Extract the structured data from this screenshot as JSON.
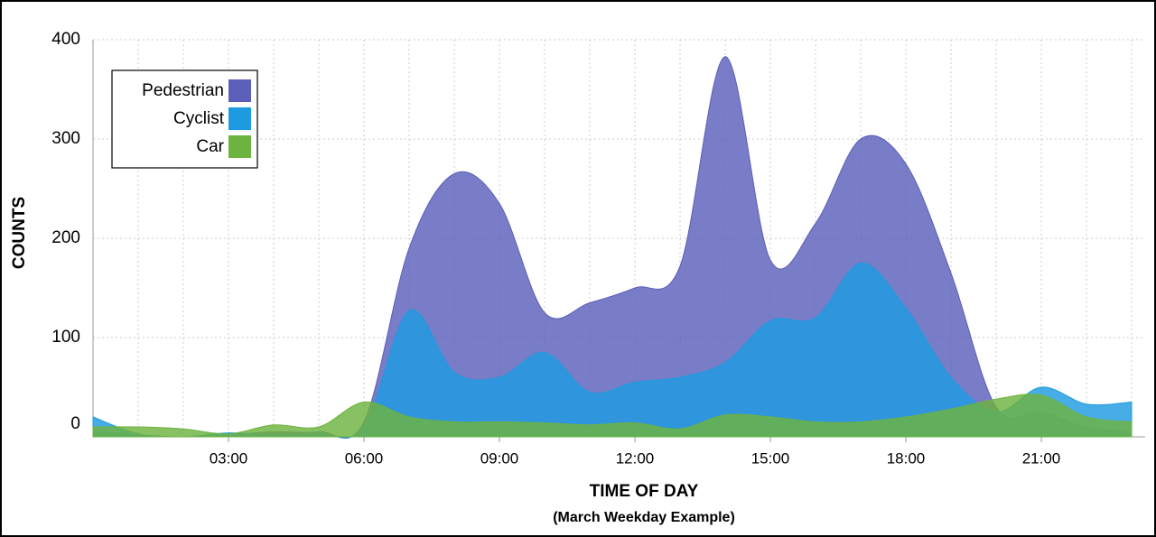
{
  "chart_data": {
    "type": "area",
    "xlabel": "TIME OF DAY",
    "subtitle": "(March Weekday Example)",
    "ylabel": "COUNTS",
    "x": [
      0,
      1,
      2,
      3,
      4,
      5,
      6,
      7,
      8,
      9,
      10,
      11,
      12,
      13,
      14,
      15,
      16,
      17,
      18,
      19,
      20,
      21,
      22,
      23
    ],
    "series": [
      {
        "name": "Pedestrian",
        "color": "#5b5fb9",
        "values": [
          5,
          2,
          0,
          2,
          5,
          5,
          15,
          190,
          265,
          235,
          125,
          135,
          150,
          172,
          383,
          178,
          215,
          300,
          275,
          165,
          30,
          25,
          10,
          5
        ]
      },
      {
        "name": "Cyclist",
        "color": "#1e9be0",
        "values": [
          20,
          3,
          0,
          4,
          2,
          3,
          10,
          127,
          65,
          60,
          85,
          45,
          55,
          60,
          75,
          117,
          120,
          175,
          130,
          60,
          25,
          50,
          33,
          35
        ]
      },
      {
        "name": "Car",
        "color": "#6db33f",
        "values": [
          10,
          10,
          8,
          3,
          12,
          10,
          35,
          20,
          15,
          15,
          14,
          12,
          14,
          8,
          22,
          20,
          15,
          15,
          20,
          28,
          38,
          42,
          20,
          15
        ]
      }
    ],
    "xlim": [
      0,
      23.3
    ],
    "xticks": [
      {
        "value": 3,
        "label": "03:00"
      },
      {
        "value": 6,
        "label": "06:00"
      },
      {
        "value": 9,
        "label": "09:00"
      },
      {
        "value": 12,
        "label": "12:00"
      },
      {
        "value": 15,
        "label": "15:00"
      },
      {
        "value": 18,
        "label": "18:00"
      },
      {
        "value": 21,
        "label": "21:00"
      }
    ],
    "ylim": [
      0,
      400
    ],
    "yticks": [
      0,
      100,
      200,
      300,
      400
    ],
    "grid": true,
    "legend": "upper left"
  }
}
